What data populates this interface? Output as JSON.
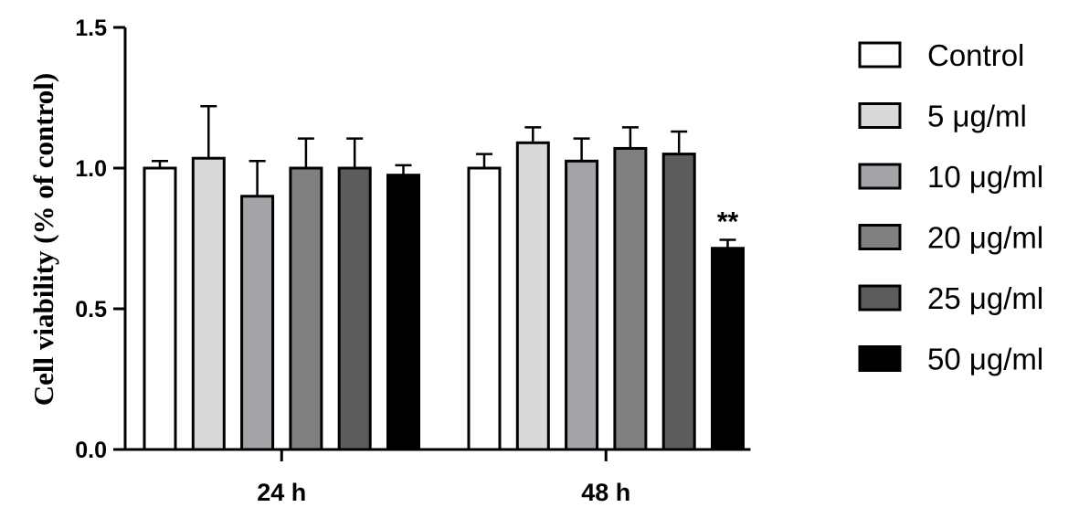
{
  "chart_data": {
    "type": "bar",
    "title": "",
    "xlabel": "",
    "ylabel": "Cell viability (% of control)",
    "ylim": [
      0,
      1.5
    ],
    "yticks": [
      "0.0",
      "0.5",
      "1.0",
      "1.5"
    ],
    "ytick_values": [
      0,
      0.5,
      1.0,
      1.5
    ],
    "categories": [
      "24 h",
      "48 h"
    ],
    "grid": false,
    "legend_position": "right",
    "series": [
      {
        "name": "Control",
        "color": "#ffffff",
        "values": [
          1.0,
          1.0
        ],
        "errors": [
          0.025,
          0.05
        ]
      },
      {
        "name": "5 μg/ml",
        "color": "#d9d9d9",
        "values": [
          1.035,
          1.09
        ],
        "errors": [
          0.185,
          0.055
        ]
      },
      {
        "name": "10 μg/ml",
        "color": "#a3a3a8",
        "values": [
          0.9,
          1.025
        ],
        "errors": [
          0.125,
          0.08
        ]
      },
      {
        "name": "20 μg/ml",
        "color": "#808080",
        "values": [
          1.0,
          1.07
        ],
        "errors": [
          0.105,
          0.075
        ]
      },
      {
        "name": "25 μg/ml",
        "color": "#5c5c5c",
        "values": [
          1.0,
          1.05
        ],
        "errors": [
          0.105,
          0.08
        ]
      },
      {
        "name": "50 μg/ml",
        "color": "#000000",
        "values": [
          0.975,
          0.715
        ],
        "errors": [
          0.035,
          0.03
        ]
      }
    ],
    "annotations": [
      {
        "text": "**",
        "category": "48 h",
        "series": "50 μg/ml"
      }
    ]
  }
}
